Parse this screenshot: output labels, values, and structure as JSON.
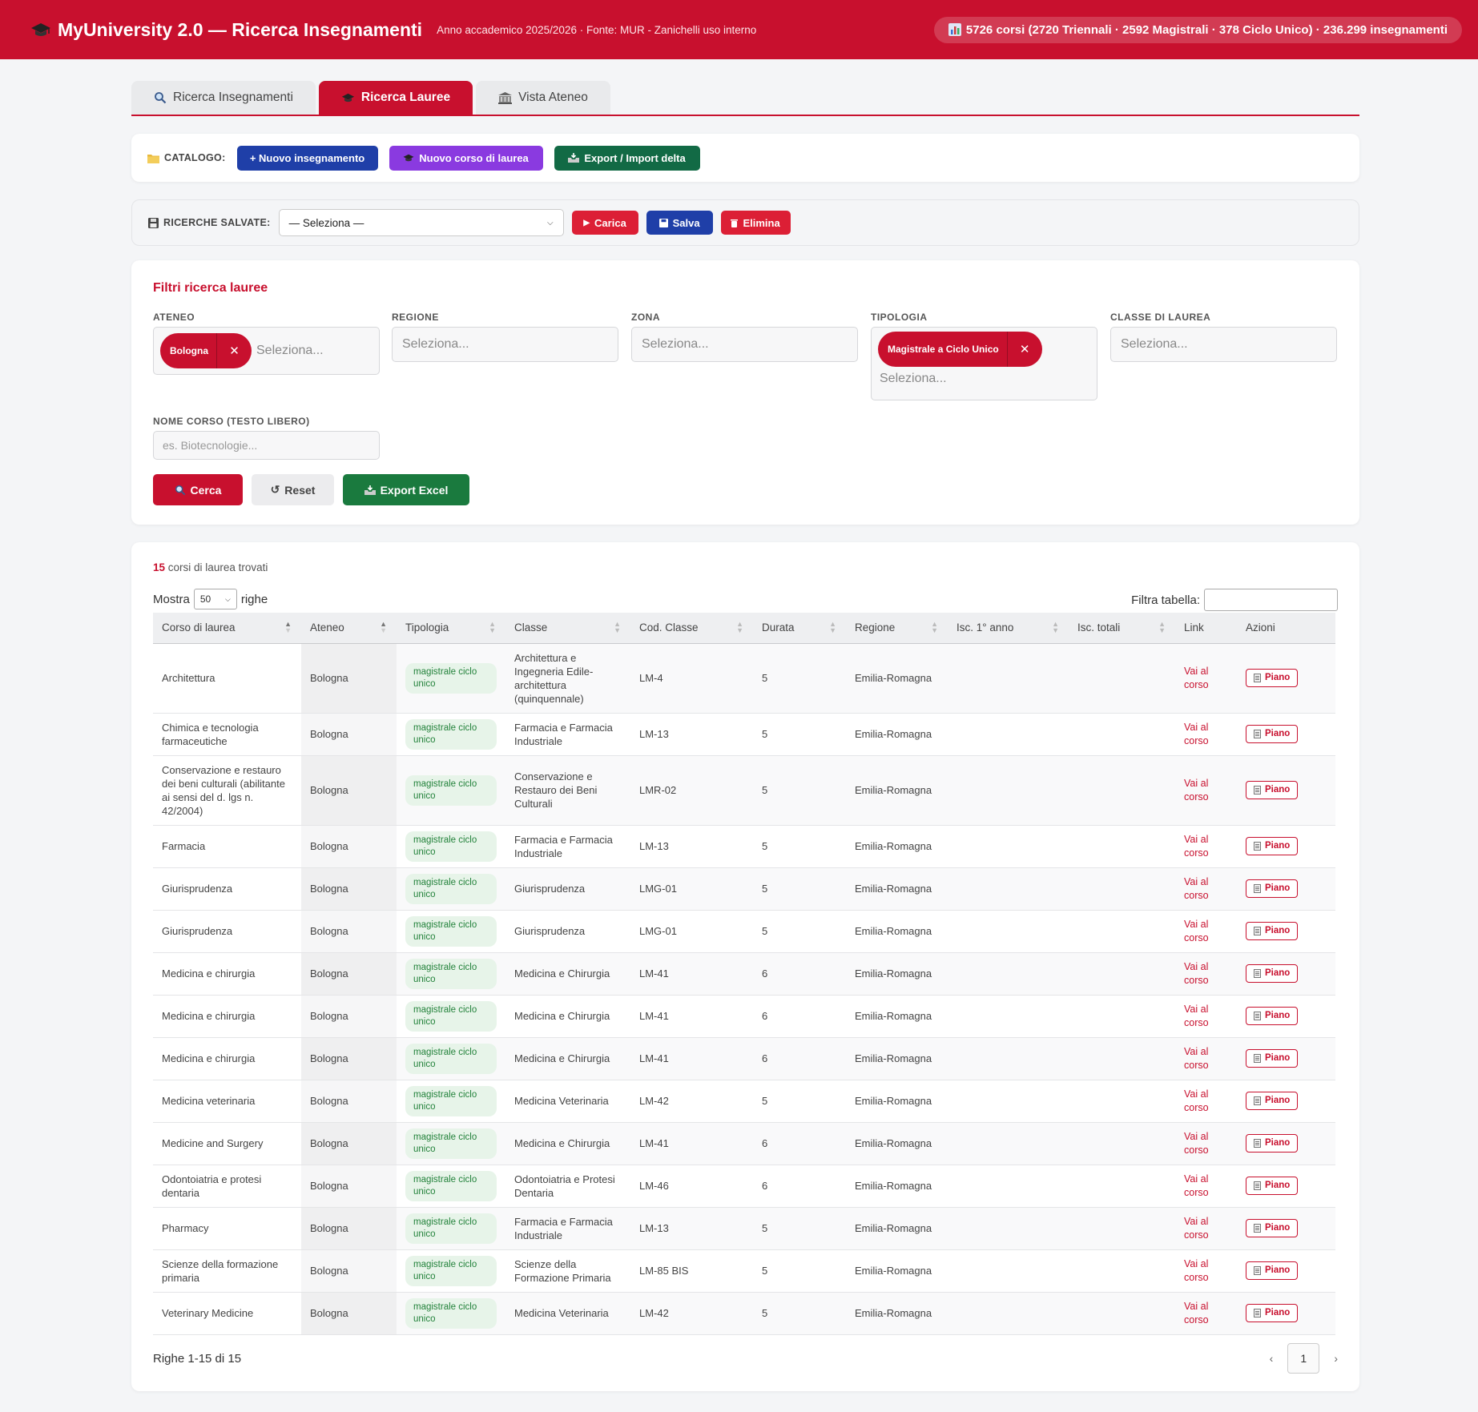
{
  "header": {
    "title": "MyUniversity 2.0 — Ricerca Insegnamenti",
    "subtitle": "Anno accademico 2025/2026 · Fonte: MUR - Zanichelli uso interno",
    "stats": "5726 corsi (2720 Triennali · 2592 Magistrali · 378 Ciclo Unico) · 236.299 insegnamenti",
    "brand_color": "#c8102e"
  },
  "tabs": [
    {
      "label": "Ricerca Insegnamenti",
      "icon": "magnifier-icon",
      "active": false
    },
    {
      "label": "Ricerca Lauree",
      "icon": "graduation-cap-icon",
      "active": true
    },
    {
      "label": "Vista Ateneo",
      "icon": "building-icon",
      "active": false
    }
  ],
  "catalog": {
    "label": "CATALOGO:",
    "new_teaching": "+ Nuovo insegnamento",
    "new_degree": "Nuovo corso di laurea",
    "export_import": "Export / Import delta"
  },
  "saved": {
    "label": "RICERCHE SALVATE:",
    "select_value": "— Seleziona —",
    "load": "Carica",
    "save": "Salva",
    "delete": "Elimina"
  },
  "filters": {
    "title": "Filtri ricerca lauree",
    "ateneo_label": "ATENEO",
    "ateneo_chip": "Bologna",
    "ateneo_placeholder": "Seleziona...",
    "regione_label": "REGIONE",
    "regione_placeholder": "Seleziona...",
    "zona_label": "ZONA",
    "zona_placeholder": "Seleziona...",
    "tipologia_label": "TIPOLOGIA",
    "tipologia_chip": "Magistrale a Ciclo Unico",
    "tipologia_placeholder": "Seleziona...",
    "classe_label": "CLASSE DI LAUREA",
    "classe_placeholder": "Seleziona...",
    "nome_label": "NOME CORSO (TESTO LIBERO)",
    "nome_placeholder": "es. Biotecnologie...",
    "search_btn": "Cerca",
    "reset_btn": "Reset",
    "export_btn": "Export Excel"
  },
  "results": {
    "count": "15",
    "count_text": "corsi di laurea trovati",
    "show_label": "Mostra",
    "show_value": "50",
    "rows_label": "righe",
    "filter_label": "Filtra tabella:",
    "columns": [
      "Corso di laurea",
      "Ateneo",
      "Tipologia",
      "Classe",
      "Cod. Classe",
      "Durata",
      "Regione",
      "Isc. 1° anno",
      "Isc. totali",
      "Link",
      "Azioni"
    ],
    "link_text": "Vai al corso",
    "piano_text": "Piano",
    "footer": "Righe 1-15 di 15",
    "page": "1",
    "rows": [
      {
        "corso": "Architettura",
        "ateneo": "Bologna",
        "tipologia": "magistrale ciclo unico",
        "classe": "Architettura e Ingegneria Edile-architettura (quinquennale)",
        "cod": "LM-4",
        "durata": "5",
        "regione": "Emilia-Romagna"
      },
      {
        "corso": "Chimica e tecnologia farmaceutiche",
        "ateneo": "Bologna",
        "tipologia": "magistrale ciclo unico",
        "classe": "Farmacia e Farmacia Industriale",
        "cod": "LM-13",
        "durata": "5",
        "regione": "Emilia-Romagna"
      },
      {
        "corso": "Conservazione e restauro dei beni culturali (abilitante ai sensi del d. lgs n. 42/2004)",
        "ateneo": "Bologna",
        "tipologia": "magistrale ciclo unico",
        "classe": "Conservazione e Restauro dei Beni Culturali",
        "cod": "LMR-02",
        "durata": "5",
        "regione": "Emilia-Romagna"
      },
      {
        "corso": "Farmacia",
        "ateneo": "Bologna",
        "tipologia": "magistrale ciclo unico",
        "classe": "Farmacia e Farmacia Industriale",
        "cod": "LM-13",
        "durata": "5",
        "regione": "Emilia-Romagna"
      },
      {
        "corso": "Giurisprudenza",
        "ateneo": "Bologna",
        "tipologia": "magistrale ciclo unico",
        "classe": "Giurisprudenza",
        "cod": "LMG-01",
        "durata": "5",
        "regione": "Emilia-Romagna"
      },
      {
        "corso": "Giurisprudenza",
        "ateneo": "Bologna",
        "tipologia": "magistrale ciclo unico",
        "classe": "Giurisprudenza",
        "cod": "LMG-01",
        "durata": "5",
        "regione": "Emilia-Romagna"
      },
      {
        "corso": "Medicina e chirurgia",
        "ateneo": "Bologna",
        "tipologia": "magistrale ciclo unico",
        "classe": "Medicina e Chirurgia",
        "cod": "LM-41",
        "durata": "6",
        "regione": "Emilia-Romagna"
      },
      {
        "corso": "Medicina e chirurgia",
        "ateneo": "Bologna",
        "tipologia": "magistrale ciclo unico",
        "classe": "Medicina e Chirurgia",
        "cod": "LM-41",
        "durata": "6",
        "regione": "Emilia-Romagna"
      },
      {
        "corso": "Medicina e chirurgia",
        "ateneo": "Bologna",
        "tipologia": "magistrale ciclo unico",
        "classe": "Medicina e Chirurgia",
        "cod": "LM-41",
        "durata": "6",
        "regione": "Emilia-Romagna"
      },
      {
        "corso": "Medicina veterinaria",
        "ateneo": "Bologna",
        "tipologia": "magistrale ciclo unico",
        "classe": "Medicina Veterinaria",
        "cod": "LM-42",
        "durata": "5",
        "regione": "Emilia-Romagna"
      },
      {
        "corso": "Medicine and Surgery",
        "ateneo": "Bologna",
        "tipologia": "magistrale ciclo unico",
        "classe": "Medicina e Chirurgia",
        "cod": "LM-41",
        "durata": "6",
        "regione": "Emilia-Romagna"
      },
      {
        "corso": "Odontoiatria e protesi dentaria",
        "ateneo": "Bologna",
        "tipologia": "magistrale ciclo unico",
        "classe": "Odontoiatria e Protesi Dentaria",
        "cod": "LM-46",
        "durata": "6",
        "regione": "Emilia-Romagna"
      },
      {
        "corso": "Pharmacy",
        "ateneo": "Bologna",
        "tipologia": "magistrale ciclo unico",
        "classe": "Farmacia e Farmacia Industriale",
        "cod": "LM-13",
        "durata": "5",
        "regione": "Emilia-Romagna"
      },
      {
        "corso": "Scienze della formazione primaria",
        "ateneo": "Bologna",
        "tipologia": "magistrale ciclo unico",
        "classe": "Scienze della Formazione Primaria",
        "cod": "LM-85 BIS",
        "durata": "5",
        "regione": "Emilia-Romagna"
      },
      {
        "corso": "Veterinary Medicine",
        "ateneo": "Bologna",
        "tipologia": "magistrale ciclo unico",
        "classe": "Medicina Veterinaria",
        "cod": "LM-42",
        "durata": "5",
        "regione": "Emilia-Romagna"
      }
    ]
  }
}
